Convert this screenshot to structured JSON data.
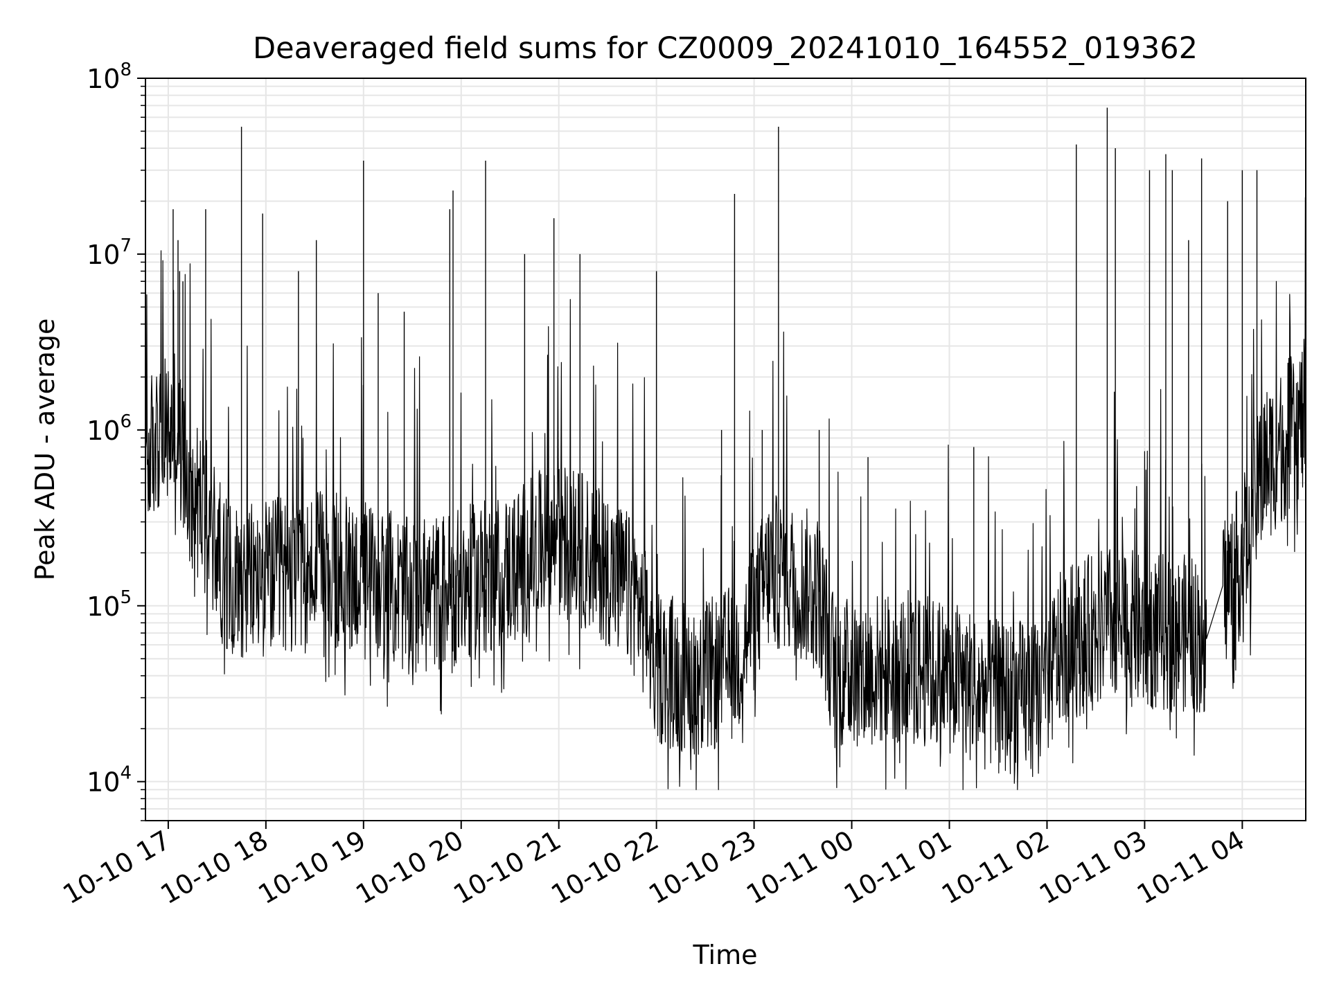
{
  "chart_data": {
    "type": "line",
    "title": "Deaveraged field sums for CZ0009_20241010_164552_019362",
    "xlabel": "Time",
    "ylabel": "Peak ADU - average",
    "y_scale": "log",
    "y_base": 10,
    "ylim": [
      6000,
      100000000
    ],
    "xlim": [
      "2024-10-10 16:46",
      "2024-10-11 04:39"
    ],
    "grid": true,
    "legend": "none",
    "line_color": "#000000",
    "grid_color": "#e6e6e6",
    "x_ticks": [
      {
        "label": "10-10 17",
        "value": "2024-10-10 17:00"
      },
      {
        "label": "10-10 18",
        "value": "2024-10-10 18:00"
      },
      {
        "label": "10-10 19",
        "value": "2024-10-10 19:00"
      },
      {
        "label": "10-10 20",
        "value": "2024-10-10 20:00"
      },
      {
        "label": "10-10 21",
        "value": "2024-10-10 21:00"
      },
      {
        "label": "10-10 22",
        "value": "2024-10-10 22:00"
      },
      {
        "label": "10-10 23",
        "value": "2024-10-10 23:00"
      },
      {
        "label": "10-11 00",
        "value": "2024-10-11 00:00"
      },
      {
        "label": "10-11 01",
        "value": "2024-10-11 01:00"
      },
      {
        "label": "10-11 02",
        "value": "2024-10-11 02:00"
      },
      {
        "label": "10-11 03",
        "value": "2024-10-11 03:00"
      },
      {
        "label": "10-11 04",
        "value": "2024-10-11 04:00"
      }
    ],
    "y_ticks": [
      {
        "base": "10",
        "exp": "4",
        "value": 10000
      },
      {
        "base": "10",
        "exp": "5",
        "value": 100000
      },
      {
        "base": "10",
        "exp": "6",
        "value": 1000000
      },
      {
        "base": "10",
        "exp": "7",
        "value": 10000000
      },
      {
        "base": "10",
        "exp": "8",
        "value": 100000000
      }
    ],
    "series": [
      {
        "baseline": [
          [
            "2024-10-10 16:46",
            700000
          ],
          [
            "2024-10-10 16:55",
            900000
          ],
          [
            "2024-10-10 17:05",
            1000000
          ],
          [
            "2024-10-10 17:12",
            500000
          ],
          [
            "2024-10-10 17:25",
            300000
          ],
          [
            "2024-10-10 17:35",
            150000
          ],
          [
            "2024-10-10 17:50",
            140000
          ],
          [
            "2024-10-10 18:30",
            160000
          ],
          [
            "2024-10-10 19:00",
            150000
          ],
          [
            "2024-10-10 19:30",
            110000
          ],
          [
            "2024-10-10 20:00",
            130000
          ],
          [
            "2024-10-10 20:30",
            160000
          ],
          [
            "2024-10-10 21:00",
            250000
          ],
          [
            "2024-10-10 21:30",
            170000
          ],
          [
            "2024-10-10 21:50",
            100000
          ],
          [
            "2024-10-10 22:00",
            45000
          ],
          [
            "2024-10-10 22:30",
            38000
          ],
          [
            "2024-10-10 22:50",
            50000
          ],
          [
            "2024-10-10 23:10",
            160000
          ],
          [
            "2024-10-10 23:40",
            120000
          ],
          [
            "2024-10-10 23:50",
            40000
          ],
          [
            "2024-10-11 00:30",
            45000
          ],
          [
            "2024-10-11 01:00",
            40000
          ],
          [
            "2024-10-11 01:30",
            30000
          ],
          [
            "2024-10-11 01:55",
            30000
          ],
          [
            "2024-10-11 02:10",
            60000
          ],
          [
            "2024-10-11 02:40",
            80000
          ],
          [
            "2024-10-11 03:00",
            70000
          ],
          [
            "2024-10-11 03:30",
            70000
          ],
          [
            "2024-10-11 03:40",
            60000
          ],
          [
            "2024-10-11 03:48",
            120000
          ],
          [
            "2024-10-11 03:55",
            150000
          ],
          [
            "2024-10-11 04:05",
            250000
          ],
          [
            "2024-10-11 04:12",
            600000
          ],
          [
            "2024-10-11 04:39",
            1200000
          ]
        ],
        "peaks": [
          [
            "2024-10-10 17:03",
            18000000
          ],
          [
            "2024-10-10 17:06",
            12000000
          ],
          [
            "2024-10-10 17:07",
            8000000
          ],
          [
            "2024-10-10 17:09",
            7000000
          ],
          [
            "2024-10-10 17:23",
            18000000
          ],
          [
            "2024-10-10 17:45",
            53000000
          ],
          [
            "2024-10-10 17:58",
            17000000
          ],
          [
            "2024-10-10 18:20",
            8000000
          ],
          [
            "2024-10-10 18:31",
            12000000
          ],
          [
            "2024-10-10 19:00",
            34000000
          ],
          [
            "2024-10-10 19:09",
            6000000
          ],
          [
            "2024-10-10 19:25",
            4700000
          ],
          [
            "2024-10-10 19:53",
            18000000
          ],
          [
            "2024-10-10 19:55",
            23000000
          ],
          [
            "2024-10-10 20:15",
            34000000
          ],
          [
            "2024-10-10 20:39",
            10000000
          ],
          [
            "2024-10-10 20:57",
            16000000
          ],
          [
            "2024-10-10 21:13",
            10000000
          ],
          [
            "2024-10-10 22:00",
            8000000
          ],
          [
            "2024-10-10 22:40",
            1000000
          ],
          [
            "2024-10-10 22:48",
            22000000
          ],
          [
            "2024-10-10 23:05",
            1000000
          ],
          [
            "2024-10-10 23:15",
            53000000
          ],
          [
            "2024-10-10 23:40",
            1000000
          ],
          [
            "2024-10-11 00:10",
            700000
          ],
          [
            "2024-10-11 01:15",
            800000
          ],
          [
            "2024-10-11 02:18",
            42000000
          ],
          [
            "2024-10-11 02:37",
            68000000
          ],
          [
            "2024-10-11 02:42",
            40000000
          ],
          [
            "2024-10-11 03:03",
            30000000
          ],
          [
            "2024-10-11 03:13",
            37000000
          ],
          [
            "2024-10-11 03:17",
            30000000
          ],
          [
            "2024-10-11 03:27",
            12000000
          ],
          [
            "2024-10-11 03:35",
            35000000
          ],
          [
            "2024-10-11 03:51",
            20000000
          ],
          [
            "2024-10-11 04:00",
            30000000
          ],
          [
            "2024-10-11 04:09",
            30000000
          ]
        ],
        "gap": [
          [
            "2024-10-11 03:38",
            65000
          ],
          [
            "2024-10-11 03:48",
            130000
          ]
        ]
      }
    ]
  }
}
